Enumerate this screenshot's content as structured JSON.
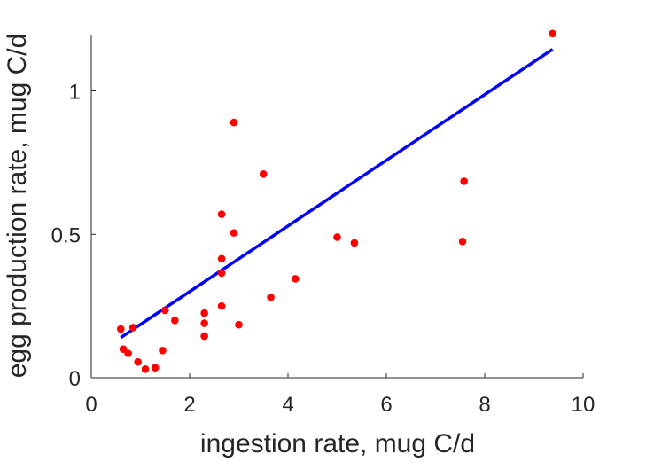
{
  "chart_data": {
    "type": "scatter",
    "xlabel": "ingestion rate, mug C/d",
    "ylabel": "egg production rate, mug C/d",
    "xlim": [
      0,
      10
    ],
    "ylim": [
      0,
      1.2
    ],
    "xticks": [
      0,
      2,
      4,
      6,
      8,
      10
    ],
    "xtick_labels": [
      "0",
      "2",
      "4",
      "6",
      "8",
      "10"
    ],
    "yticks": [
      0,
      0.5,
      1
    ],
    "ytick_labels": [
      "0",
      "0.5",
      "1"
    ],
    "grid": false,
    "colors": {
      "points": "#ff0000",
      "fit": "#0000ff",
      "axis": "#262626"
    },
    "series": [
      {
        "kind": "points",
        "points": [
          [
            0.6,
            0.17
          ],
          [
            0.65,
            0.1
          ],
          [
            0.75,
            0.085
          ],
          [
            0.85,
            0.175
          ],
          [
            0.95,
            0.055
          ],
          [
            1.1,
            0.03
          ],
          [
            1.3,
            0.035
          ],
          [
            1.45,
            0.095
          ],
          [
            1.5,
            0.235
          ],
          [
            1.7,
            0.2
          ],
          [
            2.3,
            0.225
          ],
          [
            2.3,
            0.19
          ],
          [
            2.3,
            0.145
          ],
          [
            2.65,
            0.57
          ],
          [
            2.65,
            0.415
          ],
          [
            2.65,
            0.365
          ],
          [
            2.65,
            0.25
          ],
          [
            2.9,
            0.89
          ],
          [
            2.9,
            0.505
          ],
          [
            3.0,
            0.185
          ],
          [
            3.5,
            0.71
          ],
          [
            3.65,
            0.28
          ],
          [
            4.15,
            0.345
          ],
          [
            5.0,
            0.49
          ],
          [
            5.35,
            0.47
          ],
          [
            7.55,
            0.475
          ],
          [
            7.58,
            0.685
          ],
          [
            9.38,
            1.2
          ]
        ]
      },
      {
        "kind": "fit-line",
        "points": [
          [
            0.6,
            0.14
          ],
          [
            9.38,
            1.145
          ]
        ]
      }
    ]
  }
}
